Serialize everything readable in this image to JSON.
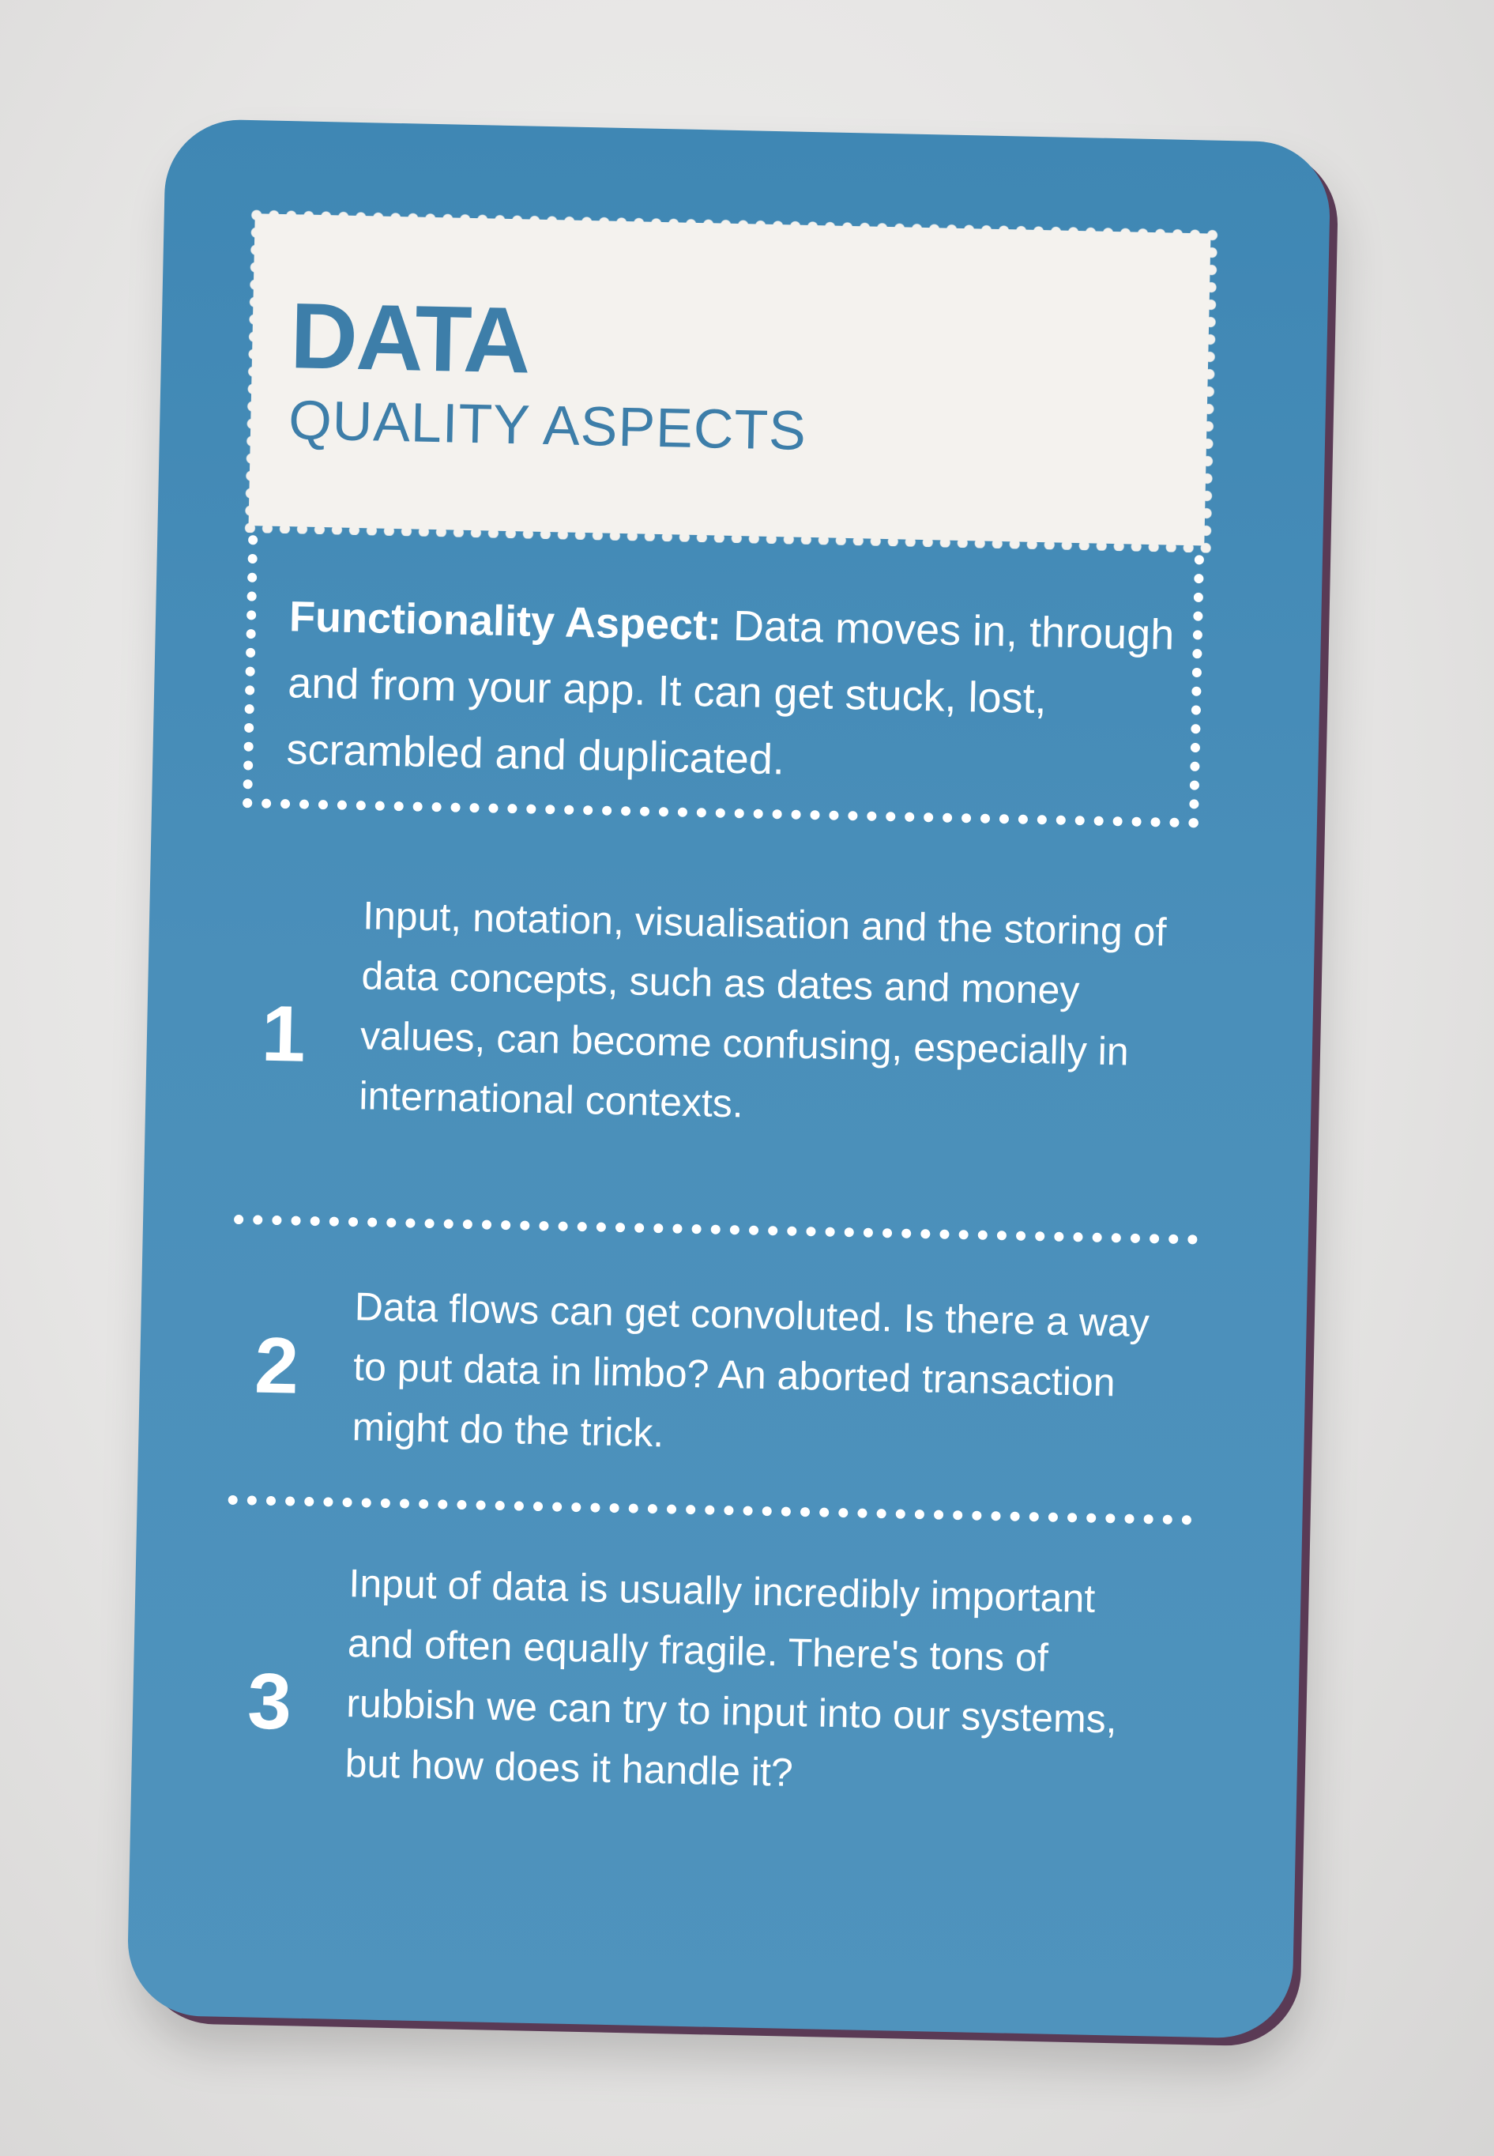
{
  "card": {
    "title": "DATA",
    "subtitle": "QUALITY ASPECTS",
    "intro_label": "Functionality Aspect:",
    "intro_text": " Data moves in, through and from your app. It can get stuck, lost, scrambled and duplicated.",
    "items": [
      {
        "number": "1",
        "text": "Input, notation, visualisation and the storing of data concepts, such as dates and money values, can become confusing, especially in international contexts."
      },
      {
        "number": "2",
        "text": "Data flows can get convoluted. Is there a way to put data in limbo? An aborted transaction might do the trick."
      },
      {
        "number": "3",
        "text": "Input of data is usually incredibly important and often equally fragile. There's tons of rubbish we can try to input into our systems, but how does it handle it?"
      }
    ]
  },
  "colors": {
    "card_blue": "#4a8fba",
    "title_blue": "#3d7ea9",
    "panel_white": "#f4f2ee",
    "background": "#e6e5e4"
  }
}
